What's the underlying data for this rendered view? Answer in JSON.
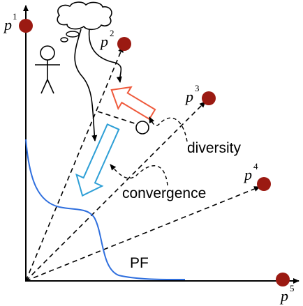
{
  "points": [
    {
      "label": "p",
      "index": "1"
    },
    {
      "label": "p",
      "index": "2"
    },
    {
      "label": "p",
      "index": "3"
    },
    {
      "label": "p",
      "index": "4"
    },
    {
      "label": "p",
      "index": "5"
    }
  ],
  "annotations": {
    "diversity": "diversity",
    "convergence": "convergence",
    "front": "PF"
  }
}
